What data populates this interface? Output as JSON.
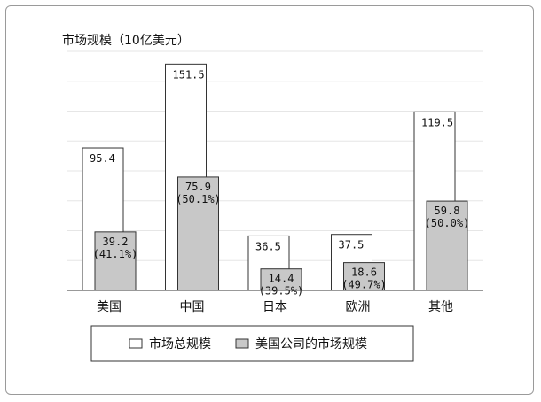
{
  "chart_data": {
    "type": "bar",
    "title": "",
    "ylabel": "市场规模（10亿美元）",
    "xlabel": "",
    "categories": [
      "美国",
      "中国",
      "日本",
      "欧洲",
      "其他"
    ],
    "series": [
      {
        "name": "市场总规模",
        "values": [
          95.4,
          151.5,
          36.5,
          37.5,
          119.5
        ],
        "labels": [
          "95.4",
          "151.5",
          "36.5",
          "37.5",
          "119.5"
        ],
        "color": "#ffffff"
      },
      {
        "name": "美国公司的市场规模",
        "values": [
          39.2,
          75.9,
          14.4,
          18.6,
          59.8
        ],
        "labels": [
          "39.2",
          "75.9",
          "14.4",
          "18.6",
          "59.8"
        ],
        "shares": [
          "(41.1%)",
          "(50.1%)",
          "(39.5%)",
          "(49.7%)",
          "(50.0%)"
        ],
        "color": "#c8c8c8"
      }
    ],
    "ylim": [
      0,
      160
    ],
    "grid": true,
    "legend": "bottom"
  }
}
